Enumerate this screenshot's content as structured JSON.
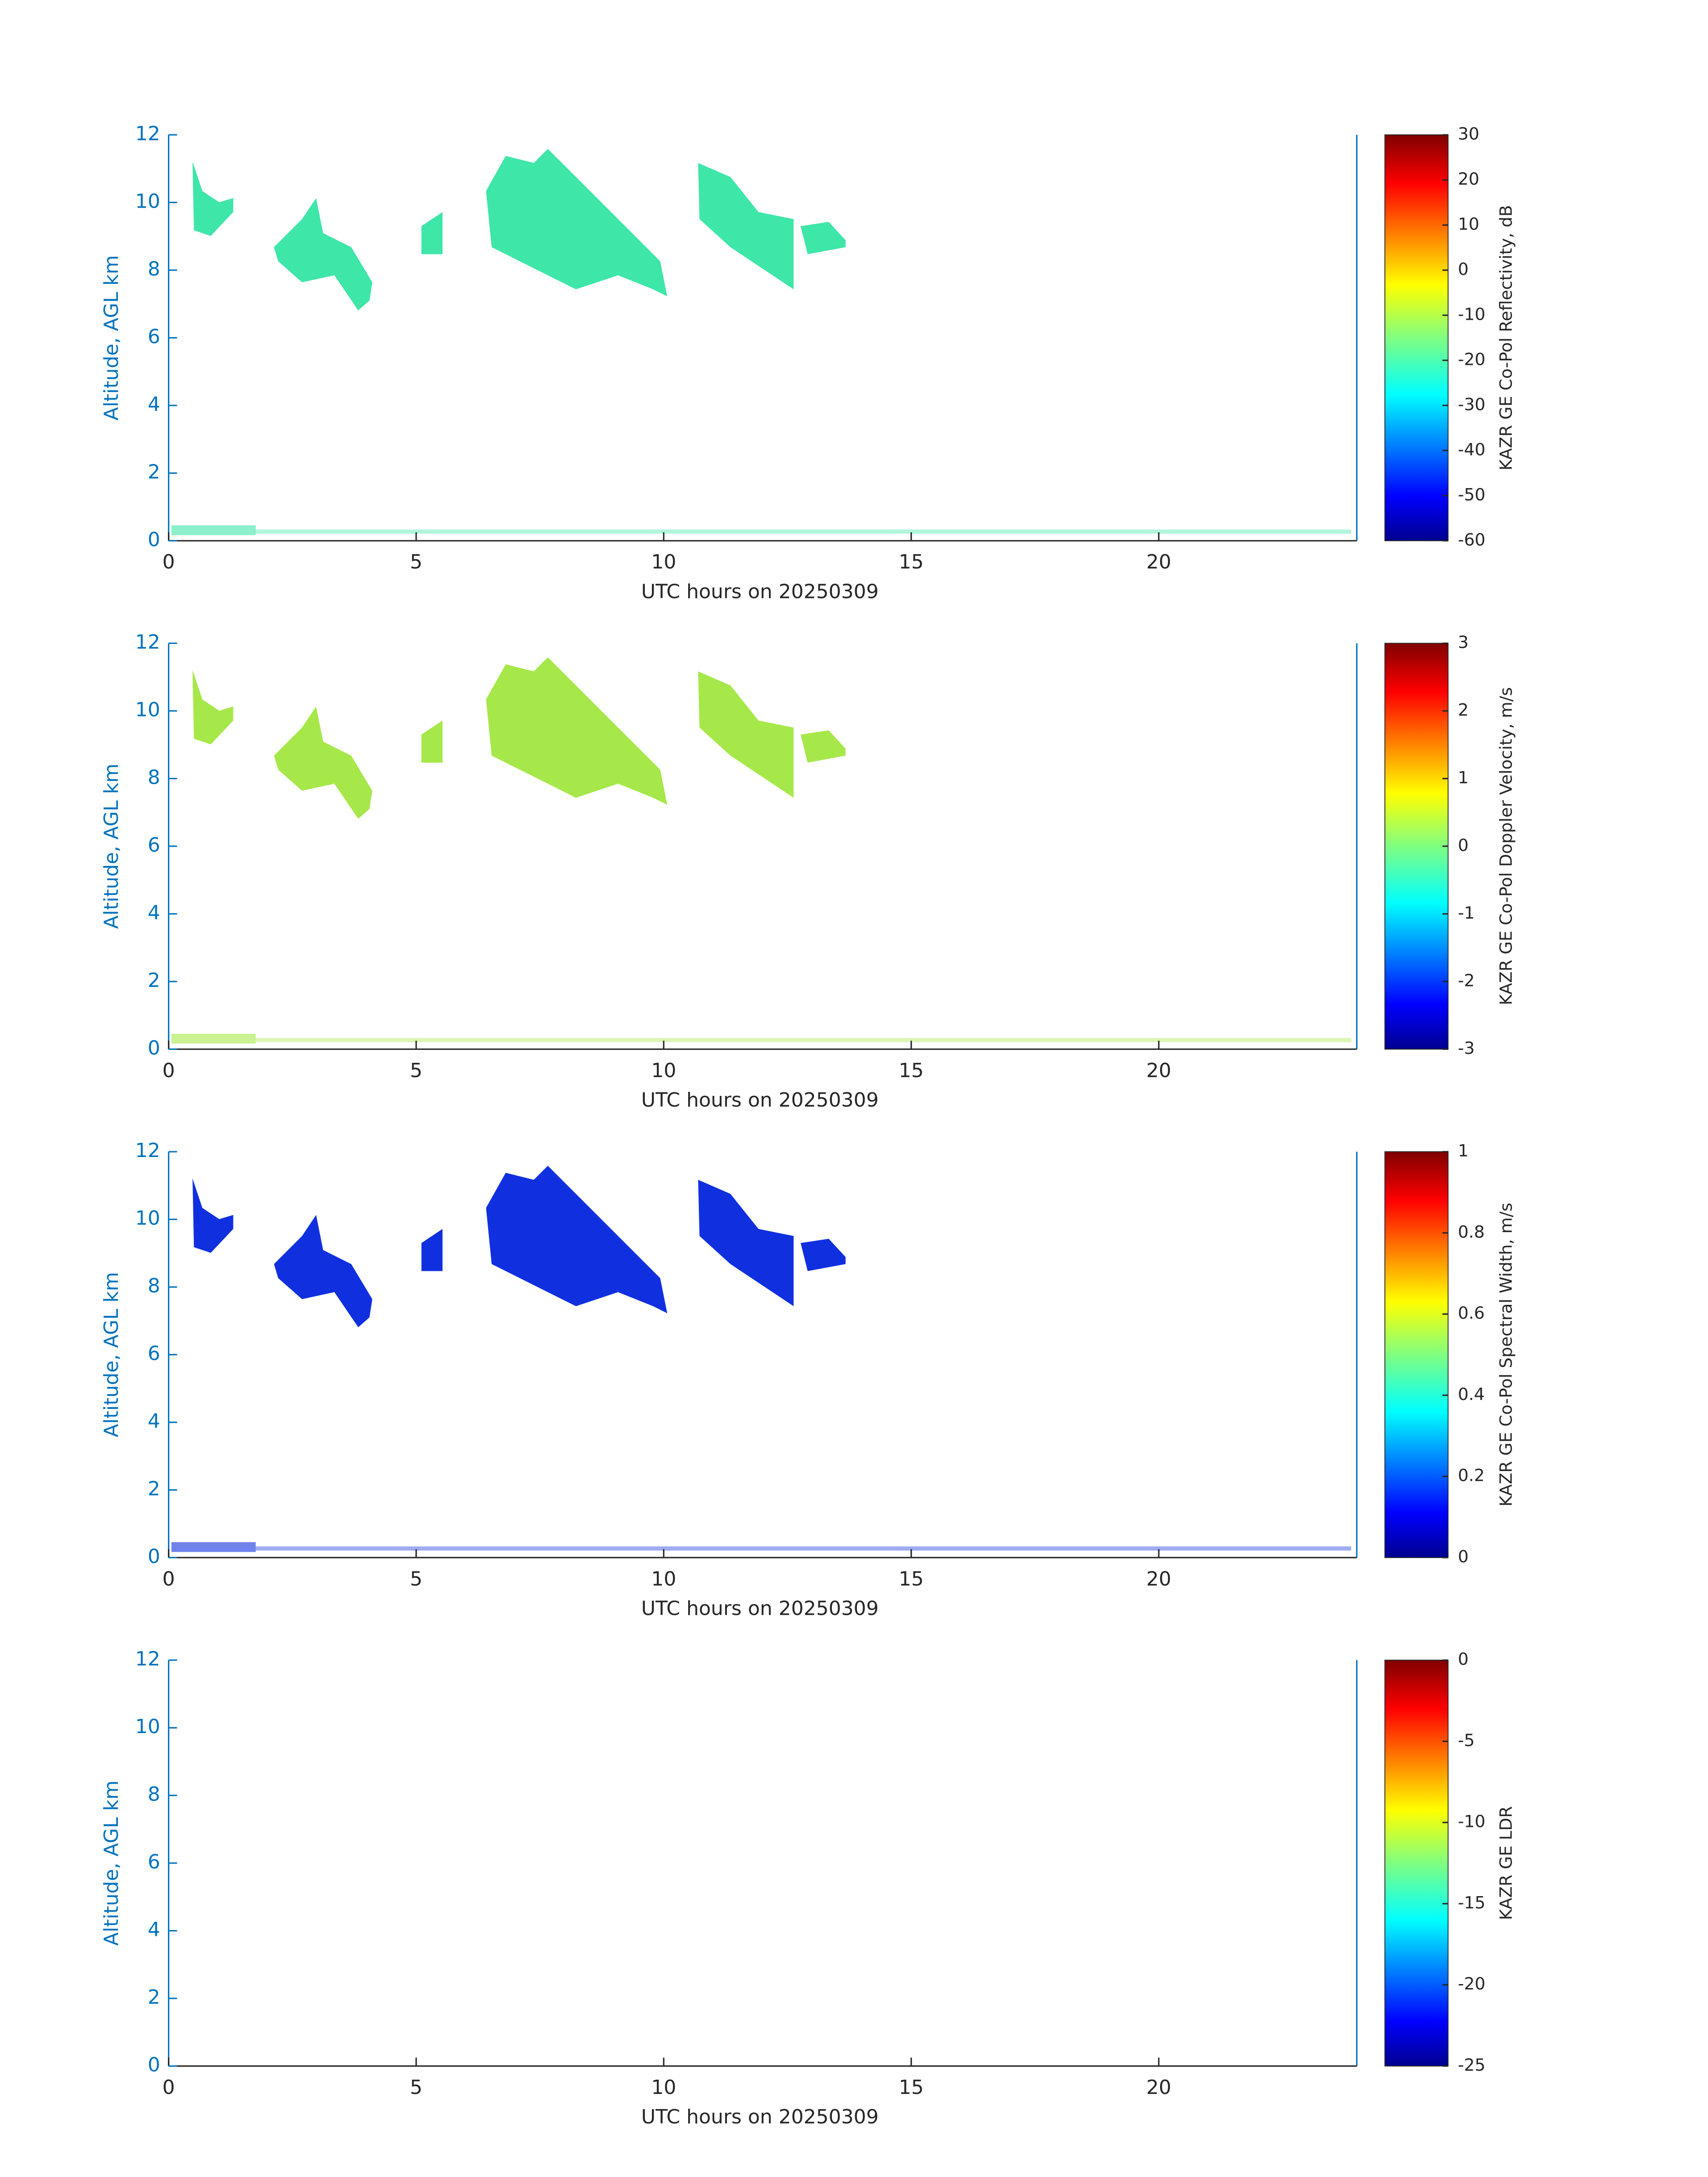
{
  "chart_data": [
    {
      "type": "heatmap",
      "xlabel": "UTC hours on 20250309",
      "ylabel": "Altitude, AGL km",
      "xlim": [
        0,
        24
      ],
      "xticks": [
        0,
        5,
        10,
        15,
        20
      ],
      "ylim": [
        0,
        12
      ],
      "yticks": [
        0,
        2,
        4,
        6,
        8,
        10,
        12
      ],
      "colorbar": {
        "label": "KAZR GE Co-Pol Reflectivity, dB",
        "lim": [
          -60,
          30
        ],
        "ticks": [
          -60,
          -50,
          -40,
          -30,
          -20,
          -10,
          0,
          10,
          20,
          30
        ]
      }
    },
    {
      "type": "heatmap",
      "xlabel": "UTC hours on 20250309",
      "ylabel": "Altitude, AGL km",
      "xlim": [
        0,
        24
      ],
      "xticks": [
        0,
        5,
        10,
        15,
        20
      ],
      "ylim": [
        0,
        12
      ],
      "yticks": [
        0,
        2,
        4,
        6,
        8,
        10,
        12
      ],
      "colorbar": {
        "label": "KAZR GE Co-Pol Doppler Velocity, m/s",
        "lim": [
          -3,
          3
        ],
        "ticks": [
          -3,
          -2,
          -1,
          0,
          1,
          2,
          3
        ]
      }
    },
    {
      "type": "heatmap",
      "xlabel": "UTC hours on 20250309",
      "ylabel": "Altitude, AGL km",
      "xlim": [
        0,
        24
      ],
      "xticks": [
        0,
        5,
        10,
        15,
        20
      ],
      "ylim": [
        0,
        12
      ],
      "yticks": [
        0,
        2,
        4,
        6,
        8,
        10,
        12
      ],
      "colorbar": {
        "label": "KAZR GE Co-Pol Spectral Width, m/s",
        "lim": [
          0,
          1
        ],
        "ticks": [
          0,
          0.2,
          0.4,
          0.6,
          0.8,
          1
        ]
      }
    },
    {
      "type": "heatmap",
      "xlabel": "UTC hours on 20250309",
      "ylabel": "Altitude, AGL km",
      "xlim": [
        0,
        24
      ],
      "xticks": [
        0,
        5,
        10,
        15,
        20
      ],
      "ylim": [
        0,
        12
      ],
      "yticks": [
        0,
        2,
        4,
        6,
        8,
        10,
        12
      ],
      "colorbar": {
        "label": "KAZR GE LDR",
        "lim": [
          -25,
          0
        ],
        "ticks": [
          -25,
          -20,
          -15,
          -10,
          -5,
          0
        ]
      }
    }
  ]
}
